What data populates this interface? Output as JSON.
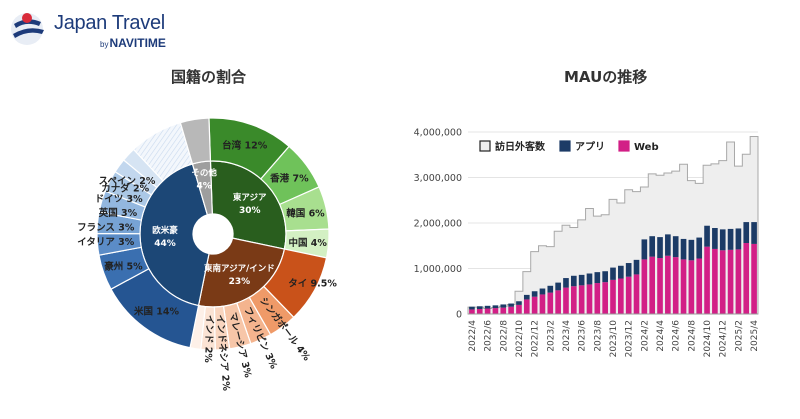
{
  "brand": {
    "name": "Japan Travel",
    "by": "by",
    "sub": "NAVITIME"
  },
  "left_title": "国籍の割合",
  "right_title": "MAUの推移",
  "chart_data": [
    {
      "type": "pie",
      "title": "国籍の割合",
      "inner": [
        {
          "label": "東アジア",
          "value": 30,
          "display": "30%",
          "color": "#295e1e"
        },
        {
          "label": "東南アジア/インド",
          "value": 23,
          "display": "23%",
          "color": "#7a3a16"
        },
        {
          "label": "欧米豪",
          "value": 44,
          "display": "44%",
          "color": "#1c4776"
        },
        {
          "label": "その他",
          "value": 4,
          "display": "4%",
          "color": "#9e9e9e"
        }
      ],
      "outer": [
        {
          "label": "台湾 12%",
          "value": 12,
          "group": 0,
          "color": "#3a8a2a"
        },
        {
          "label": "香港 7%",
          "value": 7,
          "group": 0,
          "color": "#6fc25a"
        },
        {
          "label": "韓国 6%",
          "value": 6,
          "group": 0,
          "color": "#a8df8f"
        },
        {
          "label": "中国 4%",
          "value": 4,
          "group": 0,
          "color": "#d3f0c3"
        },
        {
          "label": "タイ 9.5%",
          "value": 9.5,
          "group": 1,
          "color": "#c9521a"
        },
        {
          "label": "シンガポール 4%",
          "value": 4,
          "group": 1,
          "color": "#ef9a68"
        },
        {
          "label": "フィリピン 3%",
          "value": 3,
          "group": 1,
          "color": "#f4b48e"
        },
        {
          "label": "マレーシア 3%",
          "value": 3,
          "group": 1,
          "color": "#f7c6a8"
        },
        {
          "label": "インドネシア 2%",
          "value": 2,
          "group": 1,
          "color": "#f9d5bf"
        },
        {
          "label": "インド 2%",
          "value": 2,
          "group": 1,
          "color": "#fbe3d4"
        },
        {
          "label": "",
          "value": 1.5,
          "group": 1,
          "color": "#fdf0e8"
        },
        {
          "label": "米国 14%",
          "value": 14,
          "group": 2,
          "color": "#255592"
        },
        {
          "label": "豪州 5%",
          "value": 5,
          "group": 2,
          "color": "#3a6fb0"
        },
        {
          "label": "イタリア 3%",
          "value": 3,
          "group": 2,
          "color": "#5b8cc7"
        },
        {
          "label": "フランス 3%",
          "value": 3,
          "group": 2,
          "color": "#77a3d4"
        },
        {
          "label": "英国 3%",
          "value": 3,
          "group": 2,
          "color": "#93b7df"
        },
        {
          "label": "ドイツ 3%",
          "value": 3,
          "group": 2,
          "color": "#abc8e6"
        },
        {
          "label": "カナダ 2%",
          "value": 2,
          "group": 2,
          "color": "#c2d7ee"
        },
        {
          "label": "スペイン 2%",
          "value": 2,
          "group": 2,
          "color": "#d6e4f3"
        },
        {
          "label": "",
          "value": 7.5,
          "group": 2,
          "color": "#eaf1f9",
          "striped": true
        },
        {
          "label": "",
          "value": 4,
          "group": 3,
          "color": "#b8b8b8"
        }
      ]
    },
    {
      "type": "bar",
      "title": "MAUの推移",
      "legend": [
        "訪日外客数",
        "アプリ",
        "Web"
      ],
      "legend_colors": {
        "visitors": "#eeeeee",
        "app": "#1c3b66",
        "web": "#d21f86"
      },
      "categories": [
        "2022/4",
        "2022/5",
        "2022/6",
        "2022/7",
        "2022/8",
        "2022/9",
        "2022/10",
        "2022/11",
        "2022/12",
        "2023/1",
        "2023/2",
        "2023/3",
        "2023/4",
        "2023/5",
        "2023/6",
        "2023/7",
        "2023/8",
        "2023/9",
        "2023/10",
        "2023/11",
        "2023/12",
        "2024/1",
        "2024/2",
        "2024/3",
        "2024/4",
        "2024/5",
        "2024/6",
        "2024/7",
        "2024/8",
        "2024/9",
        "2024/10",
        "2024/11",
        "2024/12",
        "2025/1",
        "2025/2",
        "2025/3",
        "2025/4"
      ],
      "tick_labels": [
        "2022/4",
        "2022/6",
        "2022/8",
        "2022/10",
        "2022/12",
        "2023/2",
        "2023/4",
        "2023/6",
        "2023/8",
        "2023/10",
        "2023/12",
        "2024/2",
        "2024/4",
        "2024/6",
        "2024/8",
        "2024/10",
        "2024/12",
        "2025/2",
        "2025/4"
      ],
      "y_ticks": [
        "0",
        "1,000,000",
        "2,000,000",
        "3,000,000",
        "4,000,000"
      ],
      "ylim": [
        0,
        4000000
      ],
      "series": [
        {
          "name": "Web",
          "values": [
            100000,
            110000,
            120000,
            130000,
            140000,
            160000,
            200000,
            320000,
            380000,
            430000,
            470000,
            520000,
            580000,
            610000,
            630000,
            650000,
            680000,
            700000,
            750000,
            780000,
            820000,
            870000,
            1200000,
            1260000,
            1230000,
            1280000,
            1250000,
            1200000,
            1180000,
            1220000,
            1480000,
            1430000,
            1400000,
            1410000,
            1420000,
            1560000,
            1540000
          ]
        },
        {
          "name": "アプリ",
          "values": [
            60000,
            60000,
            60000,
            60000,
            70000,
            70000,
            80000,
            100000,
            120000,
            130000,
            150000,
            170000,
            210000,
            230000,
            230000,
            240000,
            240000,
            240000,
            270000,
            280000,
            300000,
            320000,
            440000,
            450000,
            460000,
            470000,
            460000,
            450000,
            450000,
            460000,
            460000,
            460000,
            460000,
            460000,
            460000,
            460000,
            480000
          ]
        },
        {
          "name": "訪日外客数",
          "values": [
            150000,
            150000,
            120000,
            140000,
            170000,
            210000,
            500000,
            930000,
            1370000,
            1500000,
            1480000,
            1820000,
            1950000,
            1900000,
            2070000,
            2320000,
            2150000,
            2180000,
            2520000,
            2440000,
            2730000,
            2690000,
            2790000,
            3080000,
            3050000,
            3100000,
            3140000,
            3290000,
            2930000,
            2870000,
            3270000,
            3300000,
            3370000,
            3780000,
            3250000,
            3510000,
            3900000
          ]
        }
      ]
    }
  ]
}
